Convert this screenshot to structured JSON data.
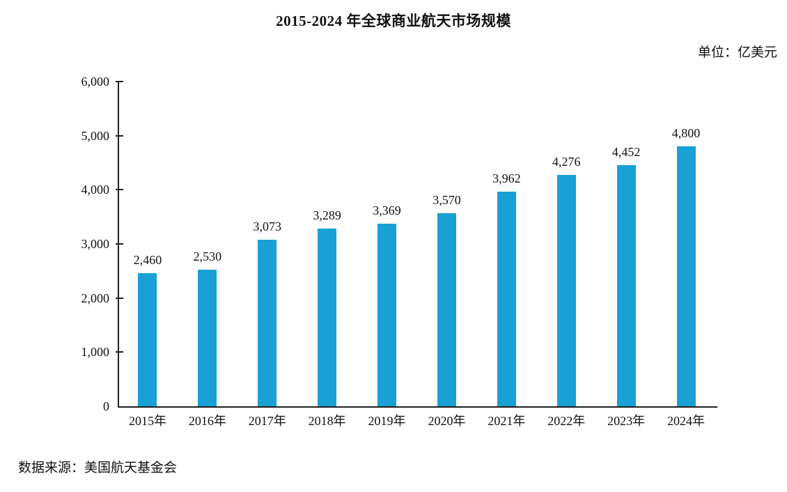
{
  "chart": {
    "title": "2015-2024 年全球商业航天市场规模",
    "unit_label": "单位：亿美元",
    "source": "数据来源：美国航天基金会"
  },
  "chart_data": {
    "type": "bar",
    "title": "2015-2024 年全球商业航天市场规模",
    "unit": "单位：亿美元",
    "source": "数据来源：美国航天基金会",
    "categories": [
      "2015年",
      "2016年",
      "2017年",
      "2018年",
      "2019年",
      "2020年",
      "2021年",
      "2022年",
      "2023年",
      "2024年"
    ],
    "values": [
      2460,
      2530,
      3073,
      3289,
      3369,
      3570,
      3962,
      4276,
      4452,
      4800
    ],
    "value_labels": [
      "2,460",
      "2,530",
      "3,073",
      "3,289",
      "3,369",
      "3,570",
      "3,962",
      "4,276",
      "4,452",
      "4,800"
    ],
    "xlabel": "",
    "ylabel": "",
    "ylim": [
      0,
      6000
    ],
    "yticks": [
      0,
      1000,
      2000,
      3000,
      4000,
      5000,
      6000
    ],
    "ytick_labels": [
      "0",
      "1,000",
      "2,000",
      "3,000",
      "4,000",
      "5,000",
      "6,000"
    ],
    "bar_color": "#19A0D5",
    "axis_color": "#1f1f1f",
    "grid": false,
    "legend_position": "none"
  }
}
